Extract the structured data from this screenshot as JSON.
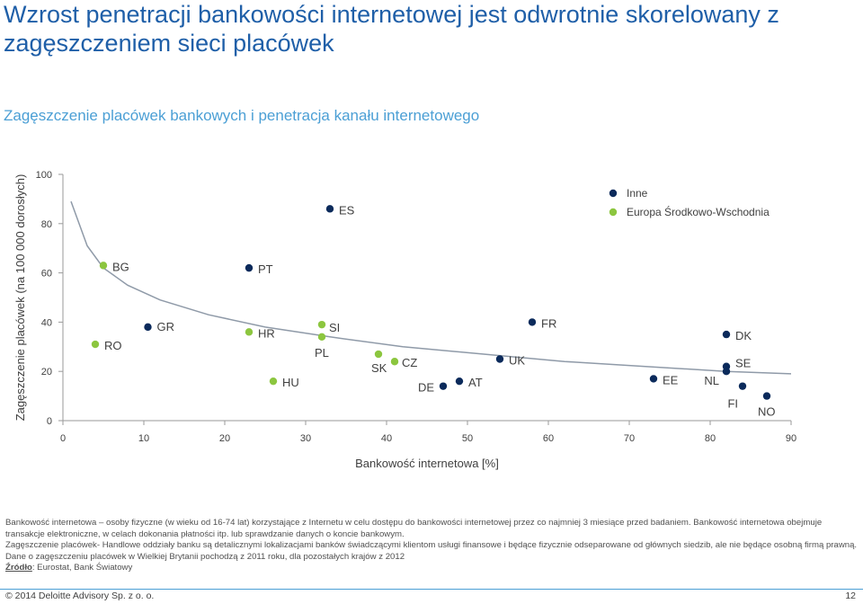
{
  "title": "Wzrost penetracji bankowości internetowej jest odwrotnie skorelowany z zagęszczeniem sieci placówek",
  "subtitle": "Zagęszczenie placówek bankowych i penetracja kanału internetowego",
  "colors": {
    "title": "#1f5fa8",
    "subtitle": "#4b9fd5",
    "inne": "#0b2a5b",
    "cee": "#8cc63f",
    "trend": "#8f9aa8"
  },
  "chart_data": {
    "type": "scatter",
    "xlabel": "Bankowość internetowa [%]",
    "ylabel": "Zagęszczenie placówek (na 100 000 dorosłych)",
    "xlim": [
      0,
      90
    ],
    "ylim": [
      0,
      100
    ],
    "xticks": [
      "0",
      "10",
      "20",
      "30",
      "40",
      "50",
      "60",
      "70",
      "80",
      "90"
    ],
    "yticks": [
      "0",
      "20",
      "40",
      "60",
      "80",
      "100"
    ],
    "legend_position": "top-right",
    "series": [
      {
        "name": "Inne",
        "color": "#0b2a5b",
        "points": [
          {
            "label": "GR",
            "x": 10.5,
            "y": 38
          },
          {
            "label": "PT",
            "x": 23,
            "y": 62
          },
          {
            "label": "ES",
            "x": 33,
            "y": 86
          },
          {
            "label": "DE",
            "x": 47,
            "y": 14
          },
          {
            "label": "AT",
            "x": 49,
            "y": 16
          },
          {
            "label": "UK",
            "x": 54,
            "y": 25
          },
          {
            "label": "FR",
            "x": 58,
            "y": 40
          },
          {
            "label": "EE",
            "x": 73,
            "y": 17
          },
          {
            "label": "DK",
            "x": 82,
            "y": 35
          },
          {
            "label": "SE",
            "x": 82,
            "y": 22
          },
          {
            "label": "NL",
            "x": 82,
            "y": 20
          },
          {
            "label": "FI",
            "x": 84,
            "y": 14
          },
          {
            "label": "NO",
            "x": 87,
            "y": 10
          }
        ]
      },
      {
        "name": "Europa Środkowo-Wschodnia",
        "color": "#8cc63f",
        "points": [
          {
            "label": "RO",
            "x": 4,
            "y": 31
          },
          {
            "label": "BG",
            "x": 5,
            "y": 63
          },
          {
            "label": "HR",
            "x": 23,
            "y": 36
          },
          {
            "label": "HU",
            "x": 26,
            "y": 16
          },
          {
            "label": "SI",
            "x": 32,
            "y": 39
          },
          {
            "label": "PL",
            "x": 32,
            "y": 34
          },
          {
            "label": "SK",
            "x": 39,
            "y": 27
          },
          {
            "label": "CZ",
            "x": 41,
            "y": 24
          }
        ]
      }
    ],
    "trendline": {
      "type": "power",
      "x": [
        1,
        3,
        5,
        8,
        12,
        18,
        25,
        33,
        42,
        52,
        62,
        72,
        82,
        90
      ],
      "y": [
        89,
        71,
        62,
        55,
        49,
        43,
        38,
        34,
        30,
        27,
        24,
        22,
        20,
        19
      ]
    }
  },
  "notes": {
    "p1": "Bankowość internetowa – osoby fizyczne (w wieku od 16-74 lat) korzystające z Internetu w celu dostępu do bankowości internetowej przez co najmniej 3 miesiące przed badaniem. Bankowość internetowa obejmuje transakcje elektroniczne, w celach dokonania płatności itp. lub sprawdzanie danych o koncie bankowym.",
    "p2": "Zagęszczenie placówek- Handlowe oddziały banku są detalicznymi lokalizacjami banków świadczącymi klientom usługi finansowe i będące fizycznie odseparowane od głównych siedzib, ale nie będące osobną firmą prawną. Dane o zagęszczeniu placówek w Wielkiej Brytanii pochodzą z 2011 roku, dla pozostałych krajów z 2012",
    "source_label": "Źródło",
    "source_text": ": Eurostat, Bank Światowy"
  },
  "footer": {
    "copyright": "© 2014 Deloitte Advisory Sp. z o. o.",
    "page": "12"
  }
}
